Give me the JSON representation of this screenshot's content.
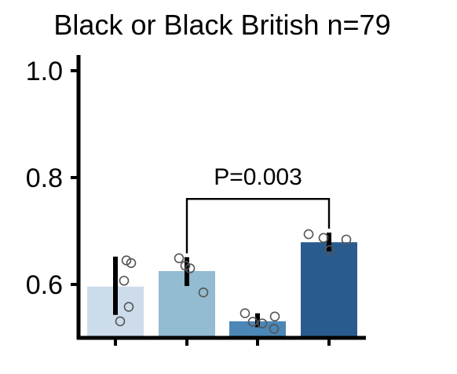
{
  "chart_data": {
    "type": "bar",
    "title": "Black or Black British n=79",
    "xlabel": "",
    "ylabel": "",
    "ylim": [
      0.5,
      1.02
    ],
    "yticks": [
      1.0,
      0.8,
      0.6
    ],
    "ytick_labels": [
      "1.0",
      "0.8",
      "0.6"
    ],
    "categories": [
      "",
      "",
      "",
      ""
    ],
    "values": [
      0.596,
      0.625,
      0.531,
      0.679
    ],
    "error_low": [
      0.543,
      0.597,
      0.52,
      0.662
    ],
    "error_high": [
      0.652,
      0.651,
      0.546,
      0.697
    ],
    "bar_colors": [
      "#cddceb",
      "#93bbd2",
      "#4b87b7",
      "#2a5b8f"
    ],
    "points": [
      [
        0.645,
        0.64,
        0.607,
        0.558,
        0.531
      ],
      [
        0.649,
        0.635,
        0.63,
        0.585
      ],
      [
        0.546,
        0.54,
        0.53,
        0.527,
        0.517
      ],
      [
        0.694,
        0.684,
        0.687,
        0.664
      ]
    ],
    "grid": false,
    "annotations": [
      {
        "text": "P=0.003",
        "from_bar": 1,
        "to_bar": 3,
        "y": 0.76
      }
    ]
  }
}
